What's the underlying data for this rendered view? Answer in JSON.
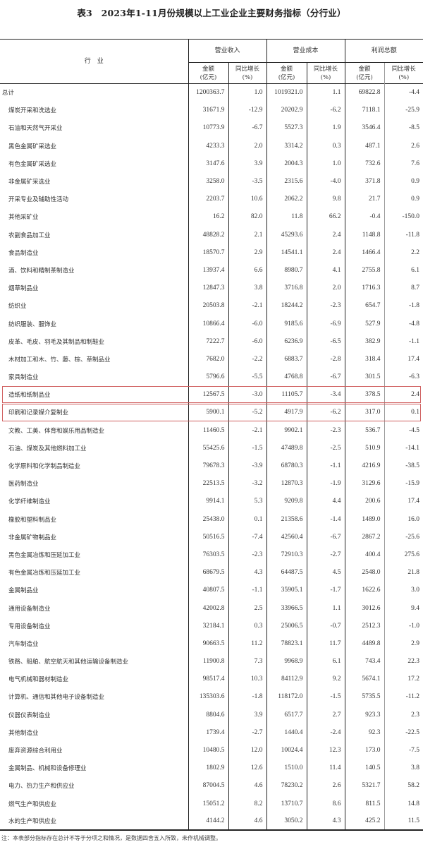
{
  "title": "表3　2023年1-11月份规模以上工业企业主要财务指标（分行业）",
  "header": {
    "industry": "行　业",
    "groups": [
      "营业收入",
      "营业成本",
      "利润总额"
    ],
    "amount": "金额",
    "amount_unit": "(亿元)",
    "growth": "同比增长",
    "growth_unit": "(%)"
  },
  "highlight_color": "#d06060",
  "highlighted_rows": [
    "造纸和纸制品业",
    "印刷和记录媒介复制业"
  ],
  "rows": [
    [
      "总计",
      "1200363.7",
      "1.0",
      "1019321.0",
      "1.1",
      "69822.8",
      "-4.4"
    ],
    [
      "煤炭开采和洗选业",
      "31671.9",
      "-12.9",
      "20202.9",
      "-6.2",
      "7118.1",
      "-25.9"
    ],
    [
      "石油和天然气开采业",
      "10773.9",
      "-6.7",
      "5527.3",
      "1.9",
      "3546.4",
      "-8.5"
    ],
    [
      "黑色金属矿采选业",
      "4233.3",
      "2.0",
      "3314.2",
      "0.3",
      "487.1",
      "2.6"
    ],
    [
      "有色金属矿采选业",
      "3147.6",
      "3.9",
      "2004.3",
      "1.0",
      "732.6",
      "7.6"
    ],
    [
      "非金属矿采选业",
      "3258.0",
      "-3.5",
      "2315.6",
      "-4.0",
      "371.8",
      "0.9"
    ],
    [
      "开采专业及辅助性活动",
      "2203.7",
      "10.6",
      "2062.2",
      "9.8",
      "21.7",
      "0.9"
    ],
    [
      "其他采矿业",
      "16.2",
      "82.0",
      "11.8",
      "66.2",
      "-0.4",
      "-150.0"
    ],
    [
      "农副食品加工业",
      "48828.2",
      "2.1",
      "45293.6",
      "2.4",
      "1148.8",
      "-11.8"
    ],
    [
      "食品制造业",
      "18570.7",
      "2.9",
      "14541.1",
      "2.4",
      "1466.4",
      "2.2"
    ],
    [
      "酒、饮料和精制茶制造业",
      "13937.4",
      "6.6",
      "8980.7",
      "4.1",
      "2755.8",
      "6.1"
    ],
    [
      "烟草制品业",
      "12847.3",
      "3.8",
      "3716.8",
      "2.0",
      "1716.3",
      "8.7"
    ],
    [
      "纺织业",
      "20503.8",
      "-2.1",
      "18244.2",
      "-2.3",
      "654.7",
      "-1.8"
    ],
    [
      "纺织服装、服饰业",
      "10866.4",
      "-6.0",
      "9185.6",
      "-6.9",
      "527.9",
      "-4.8"
    ],
    [
      "皮革、毛皮、羽毛及其制品和制鞋业",
      "7222.7",
      "-6.0",
      "6236.9",
      "-6.5",
      "382.9",
      "-1.1"
    ],
    [
      "木材加工和木、竹、藤、棕、草制品业",
      "7682.0",
      "-2.2",
      "6883.7",
      "-2.8",
      "318.4",
      "17.4"
    ],
    [
      "家具制造业",
      "5796.6",
      "-5.5",
      "4768.8",
      "-6.7",
      "301.5",
      "-6.3"
    ],
    [
      "造纸和纸制品业",
      "12567.5",
      "-3.0",
      "11105.7",
      "-3.4",
      "378.5",
      "2.4"
    ],
    [
      "印刷和记录媒介复制业",
      "5900.1",
      "-5.2",
      "4917.9",
      "-6.2",
      "317.0",
      "0.1"
    ],
    [
      "文教、工美、体育和娱乐用品制造业",
      "11460.5",
      "-2.1",
      "9902.1",
      "-2.3",
      "536.7",
      "-4.5"
    ],
    [
      "石油、煤炭及其他燃料加工业",
      "55425.6",
      "-1.5",
      "47489.8",
      "-2.5",
      "510.9",
      "-14.1"
    ],
    [
      "化学原料和化学制品制造业",
      "79678.3",
      "-3.9",
      "68780.3",
      "-1.1",
      "4216.9",
      "-38.5"
    ],
    [
      "医药制造业",
      "22513.5",
      "-3.2",
      "12870.3",
      "-1.9",
      "3129.6",
      "-15.9"
    ],
    [
      "化学纤维制造业",
      "9914.1",
      "5.3",
      "9209.8",
      "4.4",
      "200.6",
      "17.4"
    ],
    [
      "橡胶和塑料制品业",
      "25438.0",
      "0.1",
      "21358.6",
      "-1.4",
      "1489.0",
      "16.0"
    ],
    [
      "非金属矿物制品业",
      "50516.5",
      "-7.4",
      "42560.4",
      "-6.7",
      "2867.2",
      "-25.6"
    ],
    [
      "黑色金属冶炼和压延加工业",
      "76303.5",
      "-2.3",
      "72910.3",
      "-2.7",
      "400.4",
      "275.6"
    ],
    [
      "有色金属冶炼和压延加工业",
      "68679.5",
      "4.3",
      "64487.5",
      "4.5",
      "2548.0",
      "21.8"
    ],
    [
      "金属制品业",
      "40807.5",
      "-1.1",
      "35905.1",
      "-1.7",
      "1622.6",
      "3.0"
    ],
    [
      "通用设备制造业",
      "42002.8",
      "2.5",
      "33966.5",
      "1.1",
      "3012.6",
      "9.4"
    ],
    [
      "专用设备制造业",
      "32184.1",
      "0.3",
      "25006.5",
      "-0.7",
      "2512.3",
      "-1.0"
    ],
    [
      "汽车制造业",
      "90663.5",
      "11.2",
      "78823.1",
      "11.7",
      "4489.8",
      "2.9"
    ],
    [
      "铁路、船舶、航空航天和其他运输设备制造业",
      "11900.8",
      "7.3",
      "9968.9",
      "6.1",
      "743.4",
      "22.3"
    ],
    [
      "电气机械和器材制造业",
      "98517.4",
      "10.3",
      "84112.9",
      "9.2",
      "5674.1",
      "17.2"
    ],
    [
      "计算机、通信和其他电子设备制造业",
      "135303.6",
      "-1.8",
      "118172.0",
      "-1.5",
      "5735.5",
      "-11.2"
    ],
    [
      "仪器仪表制造业",
      "8804.6",
      "3.9",
      "6517.7",
      "2.7",
      "923.3",
      "2.3"
    ],
    [
      "其他制造业",
      "1739.4",
      "-2.7",
      "1440.4",
      "-2.4",
      "92.3",
      "-22.5"
    ],
    [
      "废弃资源综合利用业",
      "10480.5",
      "12.0",
      "10024.4",
      "12.3",
      "173.0",
      "-7.5"
    ],
    [
      "金属制品、机械和设备修理业",
      "1802.9",
      "12.6",
      "1510.0",
      "11.4",
      "140.5",
      "3.8"
    ],
    [
      "电力、热力生产和供应业",
      "87004.5",
      "4.6",
      "78230.2",
      "2.6",
      "5321.7",
      "58.2"
    ],
    [
      "燃气生产和供应业",
      "15051.2",
      "8.2",
      "13710.7",
      "8.6",
      "811.5",
      "14.8"
    ],
    [
      "水的生产和供应业",
      "4144.2",
      "4.6",
      "3050.2",
      "4.3",
      "425.2",
      "11.5"
    ]
  ],
  "note": "注：本表部分指标存在总计不等于分项之和情况，是数据四舍五入所致，未作机械调整。"
}
